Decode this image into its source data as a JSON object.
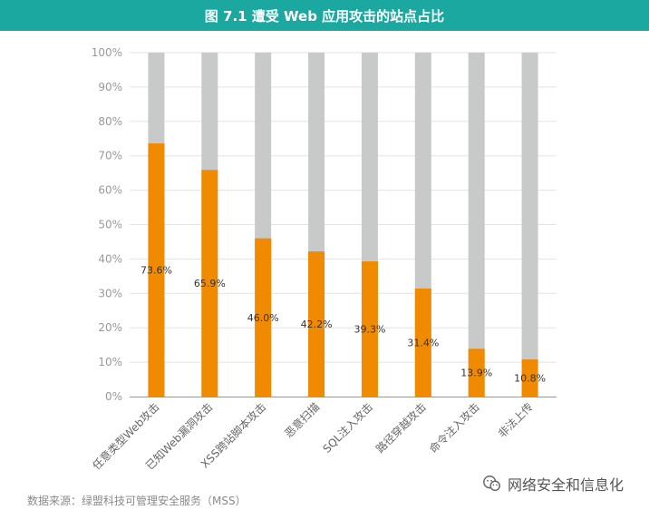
{
  "header": {
    "title": "图 7.1  遭受 Web 应用攻击的站点占比"
  },
  "footer": {
    "source": "数据来源：绿盟科技可管理安全服务（MSS）",
    "watermark": "网络安全和信息化",
    "watermark_icon": "wechat-icon"
  },
  "colors": {
    "title_bg": "#1ba8a0",
    "bar": "#f08a00",
    "bar_bg": "#c8c9c9",
    "grid": "#e3e3e3",
    "axis": "#999999",
    "tick_text": "#999999",
    "label_text": "#333333",
    "category_text": "#666666"
  },
  "chart_data": {
    "type": "bar",
    "stacked_to_100": true,
    "title": "图 7.1  遭受 Web 应用攻击的站点占比",
    "xlabel": "",
    "ylabel": "",
    "ylim": [
      0,
      100
    ],
    "yticks": [
      0,
      10,
      20,
      30,
      40,
      50,
      60,
      70,
      80,
      90,
      100
    ],
    "ytick_suffix": "%",
    "grid": true,
    "legend": "none",
    "categories": [
      "任意类型Web攻击",
      "已知Web漏洞攻击",
      "XSS跨站脚本攻击",
      "恶意扫描",
      "SQL注入攻击",
      "路径穿越攻击",
      "命令注入攻击",
      "非法上传"
    ],
    "values": [
      73.6,
      65.9,
      46.0,
      42.2,
      39.3,
      31.4,
      13.9,
      10.8
    ],
    "value_labels": [
      "73.6%",
      "65.9%",
      "46.0%",
      "42.2%",
      "39.3%",
      "31.4%",
      "13.9%",
      "10.8%"
    ]
  }
}
